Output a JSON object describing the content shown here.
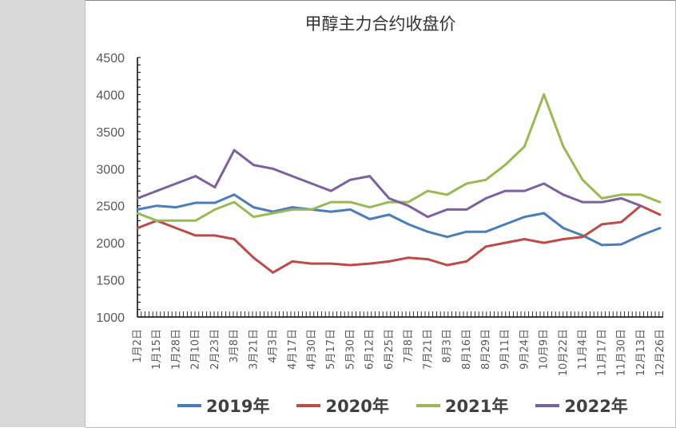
{
  "chart_data": {
    "type": "line",
    "title": "甲醇主力合约收盘价",
    "xlabel": "",
    "ylabel": "",
    "ylim": [
      1000,
      4500
    ],
    "yticks": [
      1000,
      1500,
      2000,
      2500,
      3000,
      3500,
      4000,
      4500
    ],
    "grid": false,
    "legend": "bottom",
    "categories": [
      "1月2日",
      "1月15日",
      "1月28日",
      "2月10日",
      "2月23日",
      "3月8日",
      "3月21日",
      "4月3日",
      "4月17日",
      "4月30日",
      "5月17日",
      "5月30日",
      "6月12日",
      "6月25日",
      "7月8日",
      "7月21日",
      "8月3日",
      "8月16日",
      "8月29日",
      "9月11日",
      "9月24日",
      "10月9日",
      "10月22日",
      "11月4日",
      "11月17日",
      "11月30日",
      "12月13日",
      "12月26日"
    ],
    "series": [
      {
        "name": "2019年",
        "color": "#4a7ebb",
        "values": [
          2450,
          2500,
          2480,
          2540,
          2540,
          2650,
          2480,
          2420,
          2480,
          2450,
          2420,
          2450,
          2320,
          2380,
          2250,
          2150,
          2080,
          2150,
          2150,
          2250,
          2350,
          2400,
          2200,
          2100,
          1970,
          1980,
          2100,
          2200
        ]
      },
      {
        "name": "2020年",
        "color": "#be4b48",
        "values": [
          2200,
          2300,
          2200,
          2100,
          2100,
          2050,
          1800,
          1600,
          1750,
          1720,
          1720,
          1700,
          1720,
          1750,
          1800,
          1780,
          1700,
          1750,
          1950,
          2000,
          2050,
          2000,
          2050,
          2080,
          2250,
          2280,
          2500,
          2380
        ]
      },
      {
        "name": "2021年",
        "color": "#98b954",
        "values": [
          2400,
          2300,
          2300,
          2300,
          2450,
          2550,
          2350,
          2400,
          2450,
          2450,
          2550,
          2550,
          2480,
          2550,
          2550,
          2700,
          2650,
          2800,
          2850,
          3050,
          3300,
          4000,
          3300,
          2850,
          2600,
          2650,
          2650,
          2550
        ]
      },
      {
        "name": "2022年",
        "color": "#7d60a0",
        "values": [
          2600,
          2700,
          2800,
          2900,
          2750,
          3250,
          3050,
          3000,
          2900,
          2800,
          2700,
          2850,
          2900,
          2600,
          2500,
          2350,
          2450,
          2450,
          2600,
          2700,
          2700,
          2800,
          2650,
          2550,
          2550,
          2600,
          2500,
          null
        ]
      }
    ]
  }
}
